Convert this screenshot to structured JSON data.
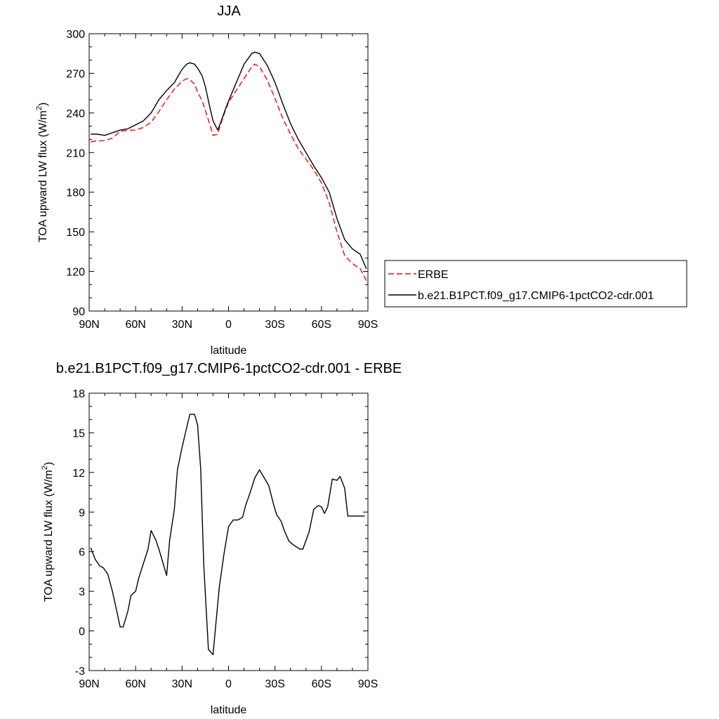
{
  "chart_data": [
    {
      "type": "line",
      "title": "JJA",
      "xlabel": "latitude",
      "ylabel": "TOA upward LW flux (W/m",
      "ylabel_sup": "2",
      "ylabel_close": ")",
      "xlim": [
        90,
        -90
      ],
      "ylim": [
        90,
        300
      ],
      "xticks": [
        {
          "value": 90,
          "label": "90N"
        },
        {
          "value": 60,
          "label": "60N"
        },
        {
          "value": 30,
          "label": "30N"
        },
        {
          "value": 0,
          "label": "0"
        },
        {
          "value": -30,
          "label": "30S"
        },
        {
          "value": -60,
          "label": "60S"
        },
        {
          "value": -90,
          "label": "90S"
        }
      ],
      "yticks": [
        90,
        120,
        150,
        180,
        210,
        240,
        270,
        300
      ],
      "legend": [
        {
          "name": "ERBE",
          "color": "#ff0000",
          "dash": "dashed"
        },
        {
          "name": "b.e21.B1PCT.f09_g17.CMIP6-1pctCO2-cdr.001",
          "color": "#000000",
          "dash": "solid"
        }
      ],
      "legend_position": "right",
      "series": [
        {
          "name": "ERBE",
          "color": "#ff0000",
          "dash": "dashed",
          "x": [
            89,
            85,
            80,
            75,
            70,
            65,
            60,
            55,
            50,
            45,
            40,
            35,
            30,
            27,
            25,
            22,
            20,
            17,
            15,
            12,
            10,
            7,
            5,
            2,
            0,
            -5,
            -10,
            -15,
            -17,
            -20,
            -25,
            -30,
            -35,
            -40,
            -45,
            -50,
            -55,
            -60,
            -65,
            -70,
            -75,
            -80,
            -85,
            -89
          ],
          "y": [
            218,
            219,
            219,
            221,
            226,
            227,
            227,
            229,
            233,
            241,
            250,
            258,
            264,
            266,
            265,
            262,
            256,
            249,
            242,
            231,
            223,
            224,
            232,
            242,
            248,
            257,
            266,
            275,
            277,
            275,
            265,
            251,
            236,
            224,
            213,
            205,
            197,
            187,
            172,
            150,
            132,
            126,
            122,
            113
          ]
        },
        {
          "name": "b.e21.B1PCT.f09_g17.CMIP6-1pctCO2-cdr.001",
          "color": "#000000",
          "dash": "solid",
          "x": [
            89,
            85,
            80,
            75,
            70,
            65,
            60,
            55,
            50,
            45,
            40,
            35,
            30,
            27,
            25,
            22,
            20,
            17,
            15,
            12,
            10,
            7,
            5,
            2,
            0,
            -5,
            -10,
            -15,
            -17,
            -20,
            -25,
            -30,
            -35,
            -40,
            -45,
            -50,
            -55,
            -60,
            -65,
            -70,
            -75,
            -80,
            -85,
            -89
          ],
          "y": [
            224,
            224,
            223,
            225,
            227,
            228,
            231,
            234,
            240,
            250,
            257,
            263,
            273,
            277,
            278,
            277,
            274,
            268,
            260,
            244,
            234,
            227,
            233,
            243,
            249,
            263,
            277,
            285,
            286,
            285,
            276,
            263,
            247,
            232,
            220,
            210,
            200,
            191,
            180,
            160,
            144,
            137,
            133,
            122
          ]
        }
      ]
    },
    {
      "type": "line",
      "title": "b.e21.B1PCT.f09_g17.CMIP6-1pctCO2-cdr.001 - ERBE",
      "xlabel": "latitude",
      "ylabel": "TOA upward LW flux (W/m",
      "ylabel_sup": "2",
      "ylabel_close": ")",
      "xlim": [
        90,
        -90
      ],
      "ylim": [
        -3,
        18
      ],
      "xticks": [
        {
          "value": 90,
          "label": "90N"
        },
        {
          "value": 60,
          "label": "60N"
        },
        {
          "value": 30,
          "label": "30N"
        },
        {
          "value": 0,
          "label": "0"
        },
        {
          "value": -30,
          "label": "30S"
        },
        {
          "value": -60,
          "label": "60S"
        },
        {
          "value": -90,
          "label": "90S"
        }
      ],
      "yticks": [
        -3,
        0,
        3,
        6,
        9,
        12,
        15,
        18
      ],
      "series": [
        {
          "name": "",
          "color": "#000000",
          "dash": "solid",
          "x": [
            89,
            86,
            83,
            81,
            78,
            75,
            72,
            70,
            68,
            65,
            63,
            60,
            58,
            55,
            52,
            50,
            47,
            45,
            42,
            40,
            38,
            35,
            33,
            30,
            27,
            25,
            22,
            20,
            18,
            16,
            13,
            10,
            8,
            6,
            3,
            0,
            -3,
            -6,
            -9,
            -11,
            -14,
            -17,
            -20,
            -22,
            -26,
            -29,
            -31,
            -34,
            -36,
            -39,
            -42,
            -46,
            -48,
            -52,
            -55,
            -58,
            -60,
            -62,
            -64,
            -67,
            -70,
            -72,
            -75,
            -77,
            -80,
            -83,
            -85,
            -88
          ],
          "y": [
            6.3,
            5.4,
            4.9,
            4.8,
            4.3,
            3.0,
            1.4,
            0.3,
            0.3,
            1.5,
            2.7,
            3.0,
            4.0,
            5.1,
            6.2,
            7.6,
            6.9,
            6.2,
            5.0,
            4.2,
            6.9,
            9.2,
            12.2,
            13.9,
            15.4,
            16.4,
            16.4,
            15.6,
            12.3,
            5.0,
            -1.4,
            -1.8,
            0.8,
            3.3,
            5.8,
            7.9,
            8.4,
            8.4,
            8.6,
            9.5,
            10.5,
            11.6,
            12.2,
            11.8,
            11.0,
            9.6,
            8.8,
            8.3,
            7.6,
            6.8,
            6.5,
            6.2,
            6.2,
            7.5,
            9.2,
            9.5,
            9.4,
            8.9,
            9.4,
            11.5,
            11.4,
            11.7,
            10.8,
            8.7,
            8.7,
            8.7,
            8.7,
            8.7
          ]
        }
      ]
    }
  ]
}
